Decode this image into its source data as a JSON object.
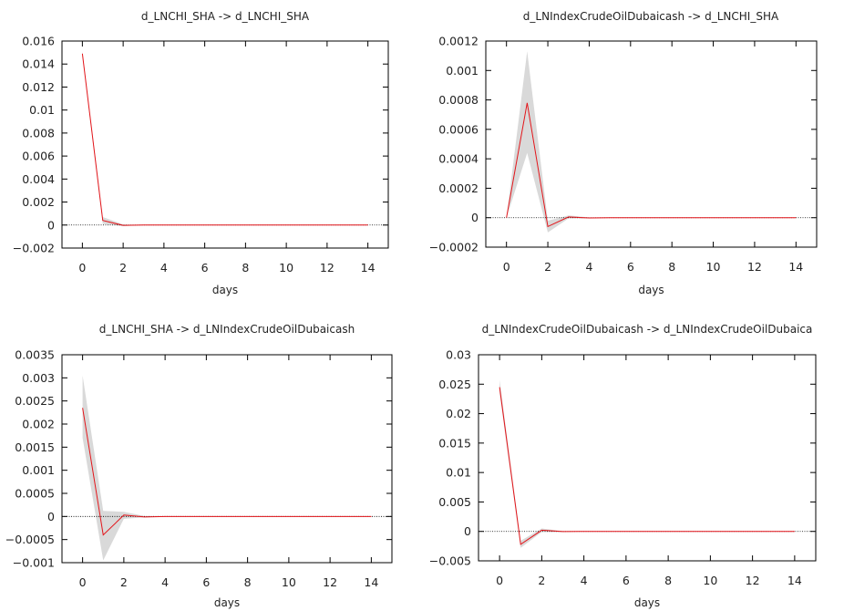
{
  "colors": {
    "line": "#e3151a",
    "band": "#d9d9d9",
    "axis": "#000000",
    "zero": "#000000"
  },
  "chart_data": [
    {
      "type": "line",
      "title": "d_LNCHI_SHA -> d_LNCHI_SHA",
      "xlabel": "days",
      "x": [
        0,
        1,
        2,
        3,
        4,
        5,
        6,
        7,
        8,
        9,
        10,
        11,
        12,
        13,
        14
      ],
      "xticks": [
        "0",
        "2",
        "4",
        "6",
        "8",
        "10",
        "12",
        "14"
      ],
      "xlim": [
        -1,
        15
      ],
      "ylim": [
        -0.002,
        0.016
      ],
      "yticks": [
        "0.016",
        "0.014",
        "0.012",
        "0.01",
        "0.008",
        "0.006",
        "0.004",
        "0.002",
        "0",
        "−0.002"
      ],
      "series": [
        {
          "values": [
            0.0149,
            0.0004,
            -3e-05,
            0,
            0,
            0,
            0,
            0,
            0,
            0,
            0,
            0,
            0,
            0,
            0
          ]
        }
      ],
      "band_lower": [
        0.0147,
        0.0001,
        -0.0001,
        0,
        0,
        0,
        0,
        0,
        0,
        0,
        0,
        0,
        0,
        0,
        0
      ],
      "band_upper": [
        0.0151,
        0.0007,
        5e-05,
        0,
        0,
        0,
        0,
        0,
        0,
        0,
        0,
        0,
        0,
        0,
        0
      ]
    },
    {
      "type": "line",
      "title": "d_LNIndexCrudeOilDubaicash -> d_LNCHI_SHA",
      "xlabel": "days",
      "x": [
        0,
        1,
        2,
        3,
        4,
        5,
        6,
        7,
        8,
        9,
        10,
        11,
        12,
        13,
        14
      ],
      "xticks": [
        "0",
        "2",
        "4",
        "6",
        "8",
        "10",
        "12",
        "14"
      ],
      "xlim": [
        -1,
        15
      ],
      "ylim": [
        -0.0002,
        0.0012
      ],
      "yticks": [
        "0.0012",
        "0.001",
        "0.0008",
        "0.0006",
        "0.0004",
        "0.0002",
        "0",
        "−0.0002"
      ],
      "series": [
        {
          "values": [
            0,
            0.00078,
            -6e-05,
            5e-06,
            -2e-06,
            0,
            0,
            0,
            0,
            0,
            0,
            0,
            0,
            0,
            0
          ]
        }
      ],
      "band_lower": [
        0,
        0.00044,
        -0.0001,
        -5e-06,
        -4e-06,
        0,
        0,
        0,
        0,
        0,
        0,
        0,
        0,
        0,
        0
      ],
      "band_upper": [
        0,
        0.00113,
        -2e-05,
        1.5e-05,
        2e-06,
        0,
        0,
        0,
        0,
        0,
        0,
        0,
        0,
        0,
        0
      ]
    },
    {
      "type": "line",
      "title": "d_LNCHI_SHA -> d_LNIndexCrudeOilDubaicash",
      "xlabel": "days",
      "x": [
        0,
        1,
        2,
        3,
        4,
        5,
        6,
        7,
        8,
        9,
        10,
        11,
        12,
        13,
        14
      ],
      "xticks": [
        "0",
        "2",
        "4",
        "6",
        "8",
        "10",
        "12",
        "14"
      ],
      "xlim": [
        -1,
        15
      ],
      "ylim": [
        -0.001,
        0.0035
      ],
      "yticks": [
        "0.0035",
        "0.003",
        "0.0025",
        "0.002",
        "0.0015",
        "0.001",
        "0.0005",
        "0",
        "−0.0005",
        "−0.001"
      ],
      "series": [
        {
          "values": [
            0.00235,
            -0.0004,
            3e-05,
            -1e-05,
            0,
            0,
            0,
            0,
            0,
            0,
            0,
            0,
            0,
            0,
            0
          ]
        }
      ],
      "band_lower": [
        0.0017,
        -0.00095,
        -5e-05,
        -2e-05,
        0,
        0,
        0,
        0,
        0,
        0,
        0,
        0,
        0,
        0,
        0
      ],
      "band_upper": [
        0.00305,
        0.00012,
        0.0001,
        1e-05,
        0,
        0,
        0,
        0,
        0,
        0,
        0,
        0,
        0,
        0,
        0
      ]
    },
    {
      "type": "line",
      "title": "d_LNIndexCrudeOilDubaicash -> d_LNIndexCrudeOilDubaica",
      "xlabel": "days",
      "x": [
        0,
        1,
        2,
        3,
        4,
        5,
        6,
        7,
        8,
        9,
        10,
        11,
        12,
        13,
        14
      ],
      "xticks": [
        "0",
        "2",
        "4",
        "6",
        "8",
        "10",
        "12",
        "14"
      ],
      "xlim": [
        -1,
        15
      ],
      "ylim": [
        -0.005,
        0.03
      ],
      "yticks": [
        "0.03",
        "0.025",
        "0.02",
        "0.015",
        "0.01",
        "0.005",
        "0",
        "−0.005"
      ],
      "series": [
        {
          "values": [
            0.0245,
            -0.0022,
            0.0002,
            -3e-05,
            0,
            0,
            0,
            0,
            0,
            0,
            0,
            0,
            0,
            0,
            0
          ]
        }
      ],
      "band_lower": [
        0.0235,
        -0.0028,
        -0.0001,
        -0.0001,
        0,
        0,
        0,
        0,
        0,
        0,
        0,
        0,
        0,
        0,
        0
      ],
      "band_upper": [
        0.0257,
        -0.0016,
        0.0005,
        5e-05,
        0,
        0,
        0,
        0,
        0,
        0,
        0,
        0,
        0,
        0,
        0
      ]
    }
  ]
}
